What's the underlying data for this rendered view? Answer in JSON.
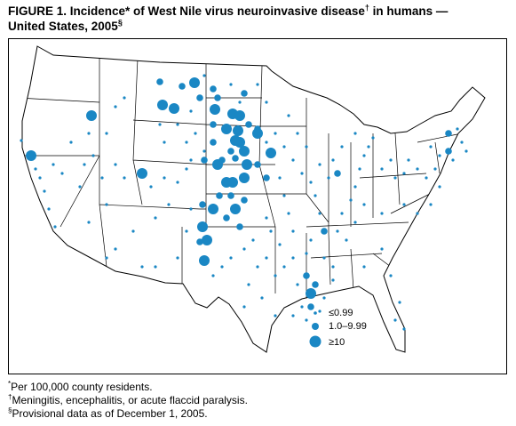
{
  "title": {
    "line1": [
      "FIGURE 1. Incidence* of West Nile virus neuroinvasive disease",
      "†",
      " in humans —"
    ],
    "line2": [
      "United States, 2005",
      "§"
    ]
  },
  "legend": [
    "≤0.99",
    "1.0–9.99",
    "≥10"
  ],
  "footnotes": [
    [
      "*",
      "Per 100,000 county residents."
    ],
    [
      "†",
      "Meningitis, encephalitis, or acute flaccid paralysis."
    ],
    [
      "§",
      "Provisional data as of December 1, 2005."
    ]
  ]
}
